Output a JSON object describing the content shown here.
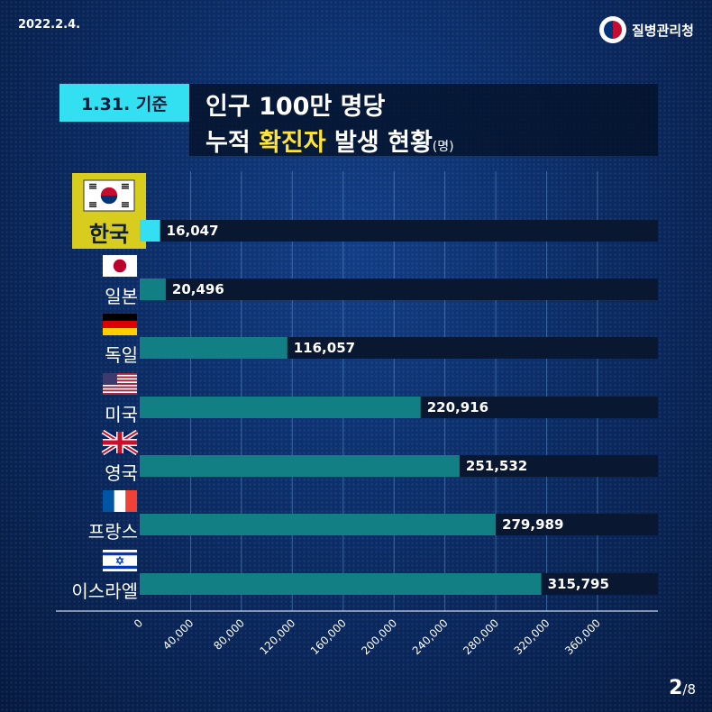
{
  "header": {
    "date": "2022.2.4.",
    "agency": "질병관리청",
    "tag": "1.31. 기준",
    "title_line1": "인구 100만 명당",
    "title_line2_prefix": "누적 ",
    "title_line2_highlight": "확진자",
    "title_line2_suffix": " 발생 현황",
    "unit": "(명)"
  },
  "flags": [
    "korea-flag-icon",
    "japan-flag-icon",
    "germany-flag-icon",
    "usa-flag-icon",
    "uk-flag-icon",
    "france-flag-icon",
    "israel-flag-icon"
  ],
  "colors": {
    "highlight_bar": "#33e0f2",
    "bar": "#127f84",
    "track": "#0a1730",
    "tag_bg": "#33e0f2",
    "title_highlight": "#ffe338"
  },
  "chart_data": {
    "type": "bar",
    "orientation": "horizontal",
    "categories": [
      "한국",
      "일본",
      "독일",
      "미국",
      "영국",
      "프랑스",
      "이스라엘"
    ],
    "values": [
      16047,
      20496,
      116057,
      220916,
      251532,
      279989,
      315795
    ],
    "value_labels": [
      "16,047",
      "20,496",
      "116,057",
      "220,916",
      "251,532",
      "279,989",
      "315,795"
    ],
    "ticks": [
      0,
      40000,
      80000,
      120000,
      160000,
      200000,
      240000,
      280000,
      320000,
      360000
    ],
    "tick_labels": [
      "0",
      "40,000",
      "80,000",
      "120,000",
      "160,000",
      "200,000",
      "240,000",
      "280,000",
      "320,000",
      "360,000"
    ],
    "xlim": [
      0,
      400000
    ],
    "grid": true,
    "highlight": "한국"
  },
  "pagination": {
    "current": "2",
    "total": "/8"
  }
}
